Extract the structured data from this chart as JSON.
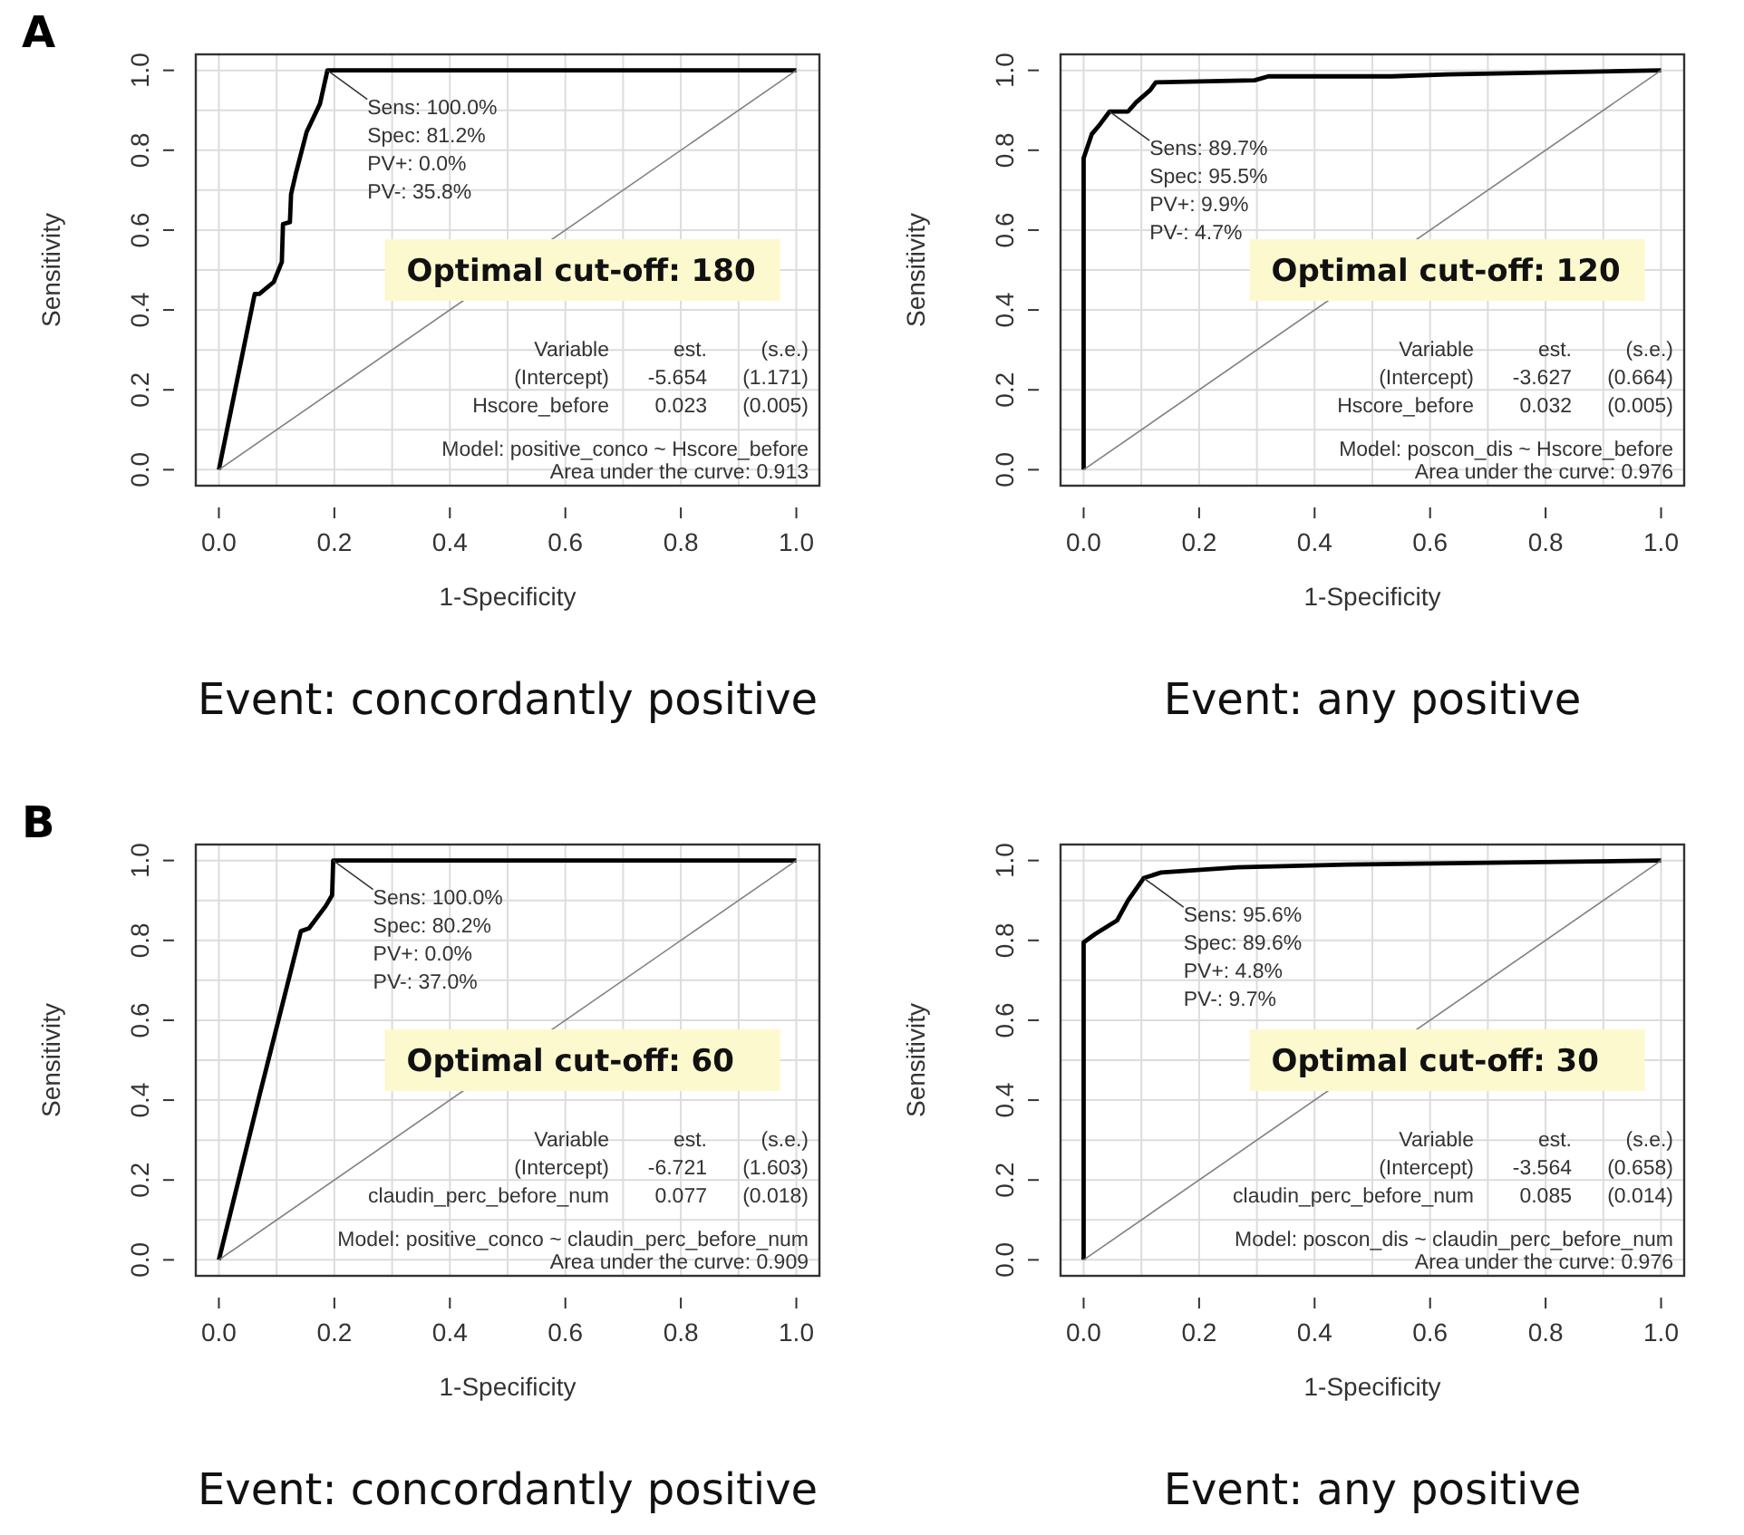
{
  "chart_data": [
    {
      "type": "line",
      "title": "A",
      "subtitle": "Event: concordantly positive",
      "xlabel": "1-Specificity",
      "ylabel": "Sensitivity",
      "series": [
        {
          "color": "#000000",
          "x": [
            0,
            0.062,
            0.07,
            0.095,
            0.109,
            0.111,
            0.123,
            0.125,
            0.133,
            0.152,
            0.175,
            0.188,
            1.0
          ],
          "values": [
            0,
            0.44,
            0.44,
            0.47,
            0.52,
            0.615,
            0.62,
            0.69,
            0.74,
            0.846,
            0.916,
            1.0,
            1.0
          ]
        },
        {
          "color": "#808080",
          "x": [
            0,
            1
          ],
          "values": [
            0,
            1
          ]
        }
      ],
      "xlim": [
        -0.04,
        1.04
      ],
      "ylim": [
        -0.04,
        1.04
      ],
      "xticks": [
        {
          "value": 0,
          "label": "0.0"
        },
        {
          "value": 0.1,
          "label": null
        },
        {
          "value": 0.2,
          "label": "0.2"
        },
        {
          "value": 0.3,
          "label": null
        },
        {
          "value": 0.4,
          "label": "0.4"
        },
        {
          "value": 0.5,
          "label": null
        },
        {
          "value": 0.6,
          "label": "0.6"
        },
        {
          "value": 0.7,
          "label": null
        },
        {
          "value": 0.8,
          "label": "0.8"
        },
        {
          "value": 0.9,
          "label": null
        },
        {
          "value": 1,
          "label": "1.0"
        }
      ],
      "yticks": [
        {
          "value": 0,
          "label": "0.0"
        },
        {
          "value": 0.1,
          "label": null
        },
        {
          "value": 0.2,
          "label": "0.2"
        },
        {
          "value": 0.3,
          "label": null
        },
        {
          "value": 0.4,
          "label": "0.4"
        },
        {
          "value": 0.5,
          "label": null
        },
        {
          "value": 0.6,
          "label": "0.6"
        },
        {
          "value": 0.7,
          "label": null
        },
        {
          "value": 0.8,
          "label": "0.8"
        },
        {
          "value": 0.9,
          "label": null
        },
        {
          "value": 1,
          "label": "1.0"
        }
      ],
      "grid": true,
      "annotations": [
        {
          "text": "Sens: 100.0%\nSpec: 81.2%\nPV+: 0.0%\nPV-: 35.8%",
          "x": 0.188,
          "y": 1.0
        },
        "Optimal cut-off: 180",
        "Variable\test.\t(s.e.)\n(Intercept)\t-5.654\t(1.171)\nHscore_before\t0.023\t(0.005)",
        "Model:  positive_conco ~ Hscore_before\nArea under the curve: 0.913"
      ]
    },
    {
      "type": "line",
      "subtitle": "Event: any positive",
      "xlabel": "1-Specificity",
      "ylabel": "Sensitivity",
      "series": [
        {
          "color": "#000000",
          "x": [
            0,
            0,
            0.014,
            0.029,
            0.045,
            0.077,
            0.091,
            0.115,
            0.125,
            0.296,
            0.32,
            0.534,
            0.63,
            1.0
          ],
          "values": [
            0,
            0.78,
            0.84,
            0.866,
            0.897,
            0.897,
            0.92,
            0.95,
            0.97,
            0.975,
            0.985,
            0.985,
            0.99,
            1.0
          ]
        },
        {
          "color": "#808080",
          "x": [
            0,
            1
          ],
          "values": [
            0,
            1
          ]
        }
      ],
      "xlim": [
        -0.04,
        1.04
      ],
      "ylim": [
        -0.04,
        1.04
      ],
      "xticks": [
        {
          "value": 0,
          "label": "0.0"
        },
        {
          "value": 0.1,
          "label": null
        },
        {
          "value": 0.2,
          "label": "0.2"
        },
        {
          "value": 0.3,
          "label": null
        },
        {
          "value": 0.4,
          "label": "0.4"
        },
        {
          "value": 0.5,
          "label": null
        },
        {
          "value": 0.6,
          "label": "0.6"
        },
        {
          "value": 0.7,
          "label": null
        },
        {
          "value": 0.8,
          "label": "0.8"
        },
        {
          "value": 0.9,
          "label": null
        },
        {
          "value": 1,
          "label": "1.0"
        }
      ],
      "yticks": [
        {
          "value": 0,
          "label": "0.0"
        },
        {
          "value": 0.1,
          "label": null
        },
        {
          "value": 0.2,
          "label": "0.2"
        },
        {
          "value": 0.3,
          "label": null
        },
        {
          "value": 0.4,
          "label": "0.4"
        },
        {
          "value": 0.5,
          "label": null
        },
        {
          "value": 0.6,
          "label": "0.6"
        },
        {
          "value": 0.7,
          "label": null
        },
        {
          "value": 0.8,
          "label": "0.8"
        },
        {
          "value": 0.9,
          "label": null
        },
        {
          "value": 1,
          "label": "1.0"
        }
      ],
      "grid": true,
      "annotations": [
        {
          "text": "Sens: 89.7%\nSpec: 95.5%\nPV+: 9.9%\nPV-: 4.7%",
          "x": 0.045,
          "y": 0.897
        },
        "Optimal cut-off: 120",
        "Variable\test.\t(s.e.)\n(Intercept)\t-3.627\t(0.664)\nHscore_before\t0.032\t(0.005)",
        "Model:  poscon_dis ~ Hscore_before\nArea under the curve: 0.976"
      ]
    },
    {
      "type": "line",
      "title": "B",
      "subtitle": "Event: concordantly positive",
      "xlabel": "1-Specificity",
      "ylabel": "Sensitivity",
      "series": [
        {
          "color": "#000000",
          "x": [
            0,
            0.07,
            0.142,
            0.156,
            0.185,
            0.196,
            0.198,
            1.0
          ],
          "values": [
            0,
            0.41,
            0.823,
            0.83,
            0.886,
            0.913,
            1.0,
            1.0
          ]
        },
        {
          "color": "#808080",
          "x": [
            0,
            1
          ],
          "values": [
            0,
            1
          ]
        }
      ],
      "xlim": [
        -0.04,
        1.04
      ],
      "ylim": [
        -0.04,
        1.04
      ],
      "xticks": [
        {
          "value": 0,
          "label": "0.0"
        },
        {
          "value": 0.1,
          "label": null
        },
        {
          "value": 0.2,
          "label": "0.2"
        },
        {
          "value": 0.3,
          "label": null
        },
        {
          "value": 0.4,
          "label": "0.4"
        },
        {
          "value": 0.5,
          "label": null
        },
        {
          "value": 0.6,
          "label": "0.6"
        },
        {
          "value": 0.7,
          "label": null
        },
        {
          "value": 0.8,
          "label": "0.8"
        },
        {
          "value": 0.9,
          "label": null
        },
        {
          "value": 1,
          "label": "1.0"
        }
      ],
      "yticks": [
        {
          "value": 0,
          "label": "0.0"
        },
        {
          "value": 0.1,
          "label": null
        },
        {
          "value": 0.2,
          "label": "0.2"
        },
        {
          "value": 0.3,
          "label": null
        },
        {
          "value": 0.4,
          "label": "0.4"
        },
        {
          "value": 0.5,
          "label": null
        },
        {
          "value": 0.6,
          "label": "0.6"
        },
        {
          "value": 0.7,
          "label": null
        },
        {
          "value": 0.8,
          "label": "0.8"
        },
        {
          "value": 0.9,
          "label": null
        },
        {
          "value": 1,
          "label": "1.0"
        }
      ],
      "grid": true,
      "annotations": [
        {
          "text": "Sens: 100.0%\nSpec: 80.2%\nPV+: 0.0%\nPV-: 37.0%",
          "x": 0.198,
          "y": 1.0
        },
        "Optimal cut-off: 60",
        "Variable\test.\t(s.e.)\n(Intercept)\t-6.721\t(1.603)\nclaudin_perc_before_num\t0.077\t(0.018)",
        "Model:  positive_conco ~ claudin_perc_before_num\nArea under the curve: 0.909"
      ]
    },
    {
      "type": "line",
      "subtitle": "Event: any positive",
      "xlabel": "1-Specificity",
      "ylabel": "Sensitivity",
      "series": [
        {
          "color": "#000000",
          "x": [
            0,
            0,
            0.02,
            0.058,
            0.077,
            0.104,
            0.134,
            0.267,
            0.457,
            1.0
          ],
          "values": [
            0,
            0.795,
            0.816,
            0.85,
            0.9,
            0.956,
            0.97,
            0.983,
            0.99,
            1.0
          ]
        },
        {
          "color": "#808080",
          "x": [
            0,
            1
          ],
          "values": [
            0,
            1
          ]
        }
      ],
      "xlim": [
        -0.04,
        1.04
      ],
      "ylim": [
        -0.04,
        1.04
      ],
      "xticks": [
        {
          "value": 0,
          "label": "0.0"
        },
        {
          "value": 0.1,
          "label": null
        },
        {
          "value": 0.2,
          "label": "0.2"
        },
        {
          "value": 0.3,
          "label": null
        },
        {
          "value": 0.4,
          "label": "0.4"
        },
        {
          "value": 0.5,
          "label": null
        },
        {
          "value": 0.6,
          "label": "0.6"
        },
        {
          "value": 0.7,
          "label": null
        },
        {
          "value": 0.8,
          "label": "0.8"
        },
        {
          "value": 0.9,
          "label": null
        },
        {
          "value": 1,
          "label": "1.0"
        }
      ],
      "yticks": [
        {
          "value": 0,
          "label": "0.0"
        },
        {
          "value": 0.1,
          "label": null
        },
        {
          "value": 0.2,
          "label": "0.2"
        },
        {
          "value": 0.3,
          "label": null
        },
        {
          "value": 0.4,
          "label": "0.4"
        },
        {
          "value": 0.5,
          "label": null
        },
        {
          "value": 0.6,
          "label": "0.6"
        },
        {
          "value": 0.7,
          "label": null
        },
        {
          "value": 0.8,
          "label": "0.8"
        },
        {
          "value": 0.9,
          "label": null
        },
        {
          "value": 1,
          "label": "1.0"
        }
      ],
      "grid": true,
      "annotations": [
        {
          "text": "Sens: 95.6%\nSpec: 89.6%\nPV+: 4.8%\nPV-: 9.7%",
          "x": 0.104,
          "y": 0.956
        },
        "Optimal cut-off: 30",
        "Variable\test.\t(s.e.)\n(Intercept)\t-3.564\t(0.658)\nclaudin_perc_before_num\t0.085\t(0.014)",
        "Model:  poscon_dis ~ claudin_perc_before_num\nArea under the curve: 0.976"
      ]
    }
  ]
}
